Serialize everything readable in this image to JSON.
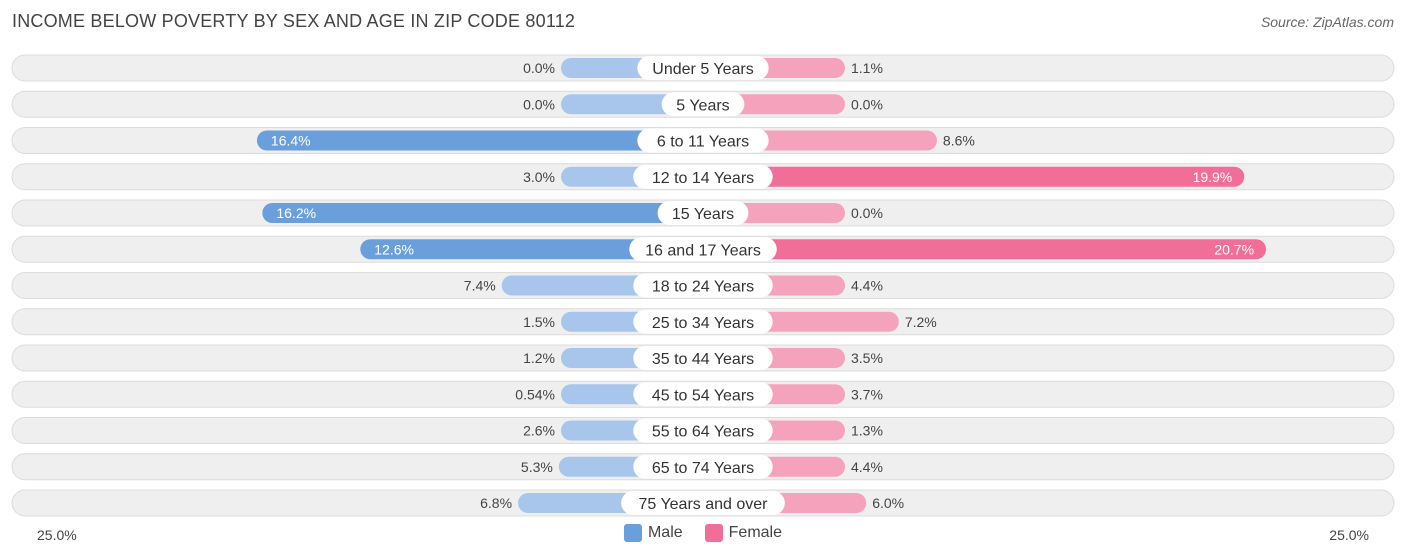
{
  "header": {
    "title": "INCOME BELOW POVERTY BY SEX AND AGE IN ZIP CODE 80112",
    "source": "Source: ZipAtlas.com"
  },
  "colors": {
    "male_strong": "#6a9fdc",
    "male_light": "#a8c6ec",
    "female_strong": "#f06e98",
    "female_light": "#f5a3bd",
    "track": "#efefef",
    "track_border": "#dcdcdc"
  },
  "chart_data": {
    "type": "bar",
    "orientation": "horizontal-diverging",
    "title": "INCOME BELOW POVERTY BY SEX AND AGE IN ZIP CODE 80112",
    "categories": [
      "Under 5 Years",
      "5 Years",
      "6 to 11 Years",
      "12 to 14 Years",
      "15 Years",
      "16 and 17 Years",
      "18 to 24 Years",
      "25 to 34 Years",
      "35 to 44 Years",
      "45 to 54 Years",
      "55 to 64 Years",
      "65 to 74 Years",
      "75 Years and over"
    ],
    "series": [
      {
        "name": "Male",
        "values": [
          0.0,
          0.0,
          16.4,
          3.0,
          16.2,
          12.6,
          7.4,
          1.5,
          1.2,
          0.54,
          2.6,
          5.3,
          6.8
        ],
        "labels": [
          "0.0%",
          "0.0%",
          "16.4%",
          "3.0%",
          "16.2%",
          "12.6%",
          "7.4%",
          "1.5%",
          "1.2%",
          "0.54%",
          "2.6%",
          "5.3%",
          "6.8%"
        ]
      },
      {
        "name": "Female",
        "values": [
          1.1,
          0.0,
          8.6,
          19.9,
          0.0,
          20.7,
          4.4,
          7.2,
          3.5,
          3.7,
          1.3,
          4.4,
          6.0
        ],
        "labels": [
          "1.1%",
          "0.0%",
          "8.6%",
          "19.9%",
          "0.0%",
          "20.7%",
          "4.4%",
          "7.2%",
          "3.5%",
          "3.7%",
          "1.3%",
          "4.4%",
          "6.0%"
        ]
      }
    ],
    "xlim": [
      -25,
      25
    ],
    "axis_labels": {
      "left": "25.0%",
      "right": "25.0%"
    },
    "legend": [
      "Male",
      "Female"
    ],
    "legend_position": "bottom-center"
  }
}
